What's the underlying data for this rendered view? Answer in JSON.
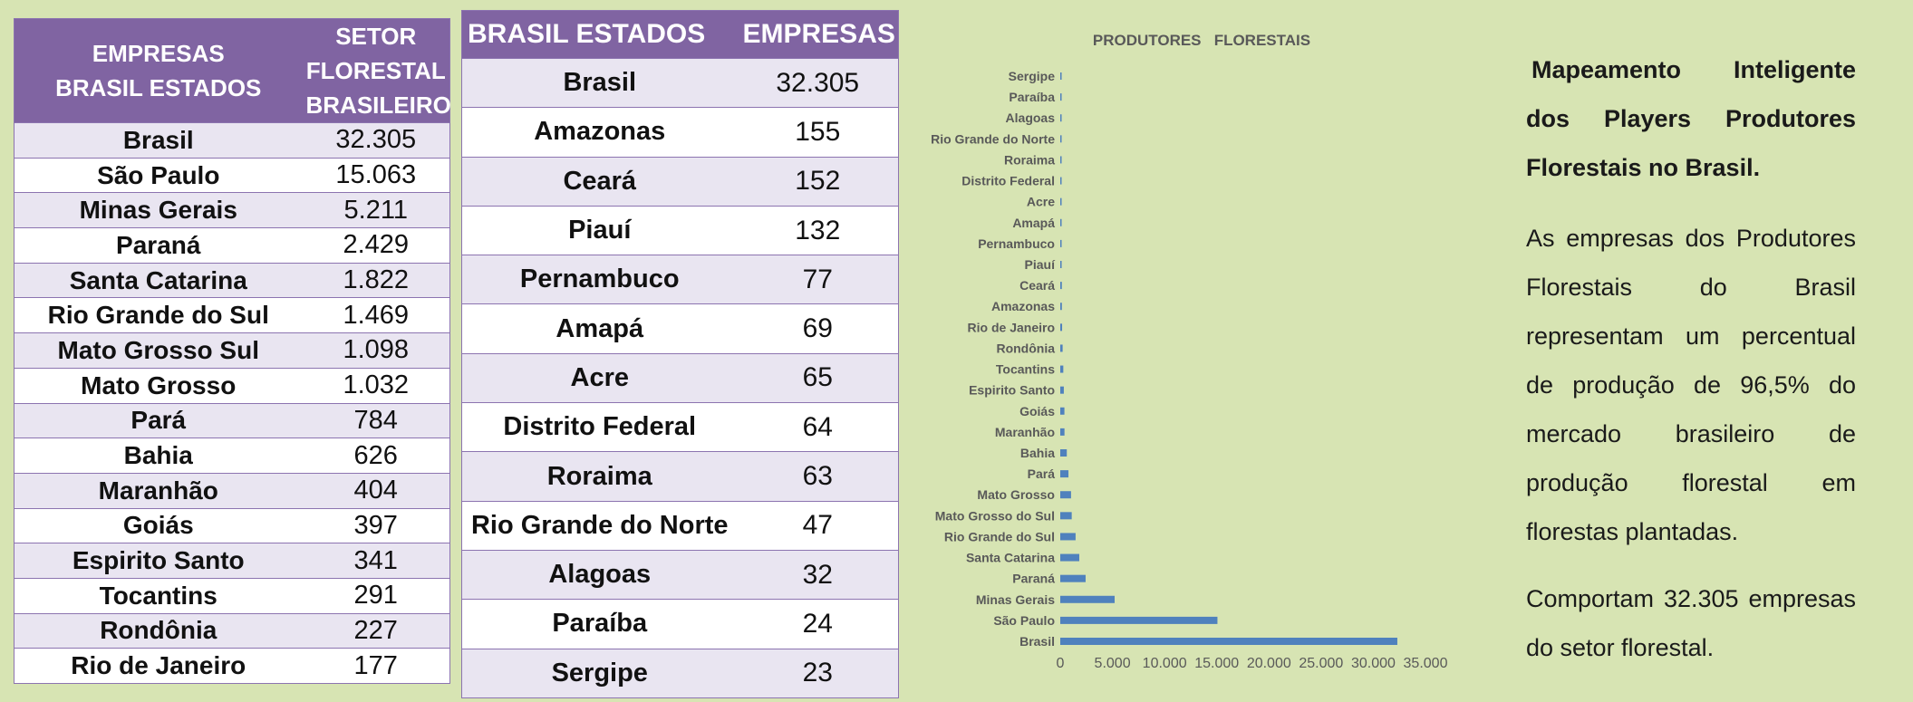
{
  "table_left": {
    "header_col1": [
      "EMPRESAS",
      "BRASIL ESTADOS"
    ],
    "header_col2": [
      "SETOR",
      "FLORESTAL",
      "BRASILEIRO"
    ],
    "rows": [
      {
        "name": "Brasil",
        "value": "32.305"
      },
      {
        "name": "São Paulo",
        "value": "15.063"
      },
      {
        "name": "Minas Gerais",
        "value": "5.211"
      },
      {
        "name": "Paraná",
        "value": "2.429"
      },
      {
        "name": "Santa Catarina",
        "value": "1.822"
      },
      {
        "name": "Rio Grande do Sul",
        "value": "1.469"
      },
      {
        "name": "Mato Grosso Sul",
        "value": "1.098"
      },
      {
        "name": "Mato Grosso",
        "value": "1.032"
      },
      {
        "name": "Pará",
        "value": "784"
      },
      {
        "name": "Bahia",
        "value": "626"
      },
      {
        "name": "Maranhão",
        "value": "404"
      },
      {
        "name": "Goiás",
        "value": "397"
      },
      {
        "name": "Espirito Santo",
        "value": "341"
      },
      {
        "name": "Tocantins",
        "value": "291"
      },
      {
        "name": "Rondônia",
        "value": "227"
      },
      {
        "name": "Rio de Janeiro",
        "value": "177"
      }
    ]
  },
  "table_right": {
    "header_col1": "BRASIL ESTADOS",
    "header_col2": "EMPRESAS",
    "rows": [
      {
        "name": "Brasil",
        "value": "32.305"
      },
      {
        "name": "Amazonas",
        "value": "155"
      },
      {
        "name": "Ceará",
        "value": "152"
      },
      {
        "name": "Piauí",
        "value": "132"
      },
      {
        "name": "Pernambuco",
        "value": "77"
      },
      {
        "name": "Amapá",
        "value": "69"
      },
      {
        "name": "Acre",
        "value": "65"
      },
      {
        "name": "Distrito Federal",
        "value": "64"
      },
      {
        "name": "Roraima",
        "value": "63"
      },
      {
        "name": "Rio Grande do Norte",
        "value": "47"
      },
      {
        "name": "Alagoas",
        "value": "32"
      },
      {
        "name": "Paraíba",
        "value": "24"
      },
      {
        "name": "Sergipe",
        "value": "23"
      }
    ]
  },
  "chart_data": {
    "type": "bar",
    "orientation": "horizontal",
    "title": "PRODUTORES   FLORESTAIS",
    "categories": [
      "Sergipe",
      "Paraíba",
      "Alagoas",
      "Rio Grande do Norte",
      "Roraima",
      "Distrito Federal",
      "Acre",
      "Amapá",
      "Pernambuco",
      "Piauí",
      "Ceará",
      "Amazonas",
      "Rio de Janeiro",
      "Rondônia",
      "Tocantins",
      "Espirito Santo",
      "Goiás",
      "Maranhão",
      "Bahia",
      "Pará",
      "Mato Grosso",
      "Mato Grosso do Sul",
      "Rio Grande do Sul",
      "Santa Catarina",
      "Paraná",
      "Minas Gerais",
      "São Paulo",
      "Brasil"
    ],
    "values": [
      23,
      24,
      32,
      47,
      63,
      64,
      65,
      69,
      77,
      132,
      152,
      155,
      177,
      227,
      291,
      341,
      397,
      404,
      626,
      784,
      1032,
      1098,
      1469,
      1822,
      2429,
      5211,
      15063,
      32305
    ],
    "xlim": [
      0,
      35000
    ],
    "xticks": [
      0,
      5000,
      10000,
      15000,
      20000,
      25000,
      30000,
      35000
    ],
    "xtick_labels": [
      "0",
      "5.000",
      "10.000",
      "15.000",
      "20.000",
      "25.000",
      "30.000",
      "35.000"
    ],
    "bar_color": "#4f81bd",
    "grid": false,
    "legend": false
  },
  "text": {
    "heading": "Mapeamento Inteligente dos Players Produtores Florestais no Brasil.",
    "paragraph1": "As empresas dos Produtores Florestais do Brasil representam um percentual de produção de 96,5% do mercado brasileiro de produção florestal em florestas plantadas.",
    "paragraph2": "Comportam 32.305 empresas do setor florestal."
  },
  "colors": {
    "background": "#d7e4b3",
    "header": "#8064a2",
    "row_alt": "#e9e5f1",
    "row_border": "#8c74b0"
  }
}
